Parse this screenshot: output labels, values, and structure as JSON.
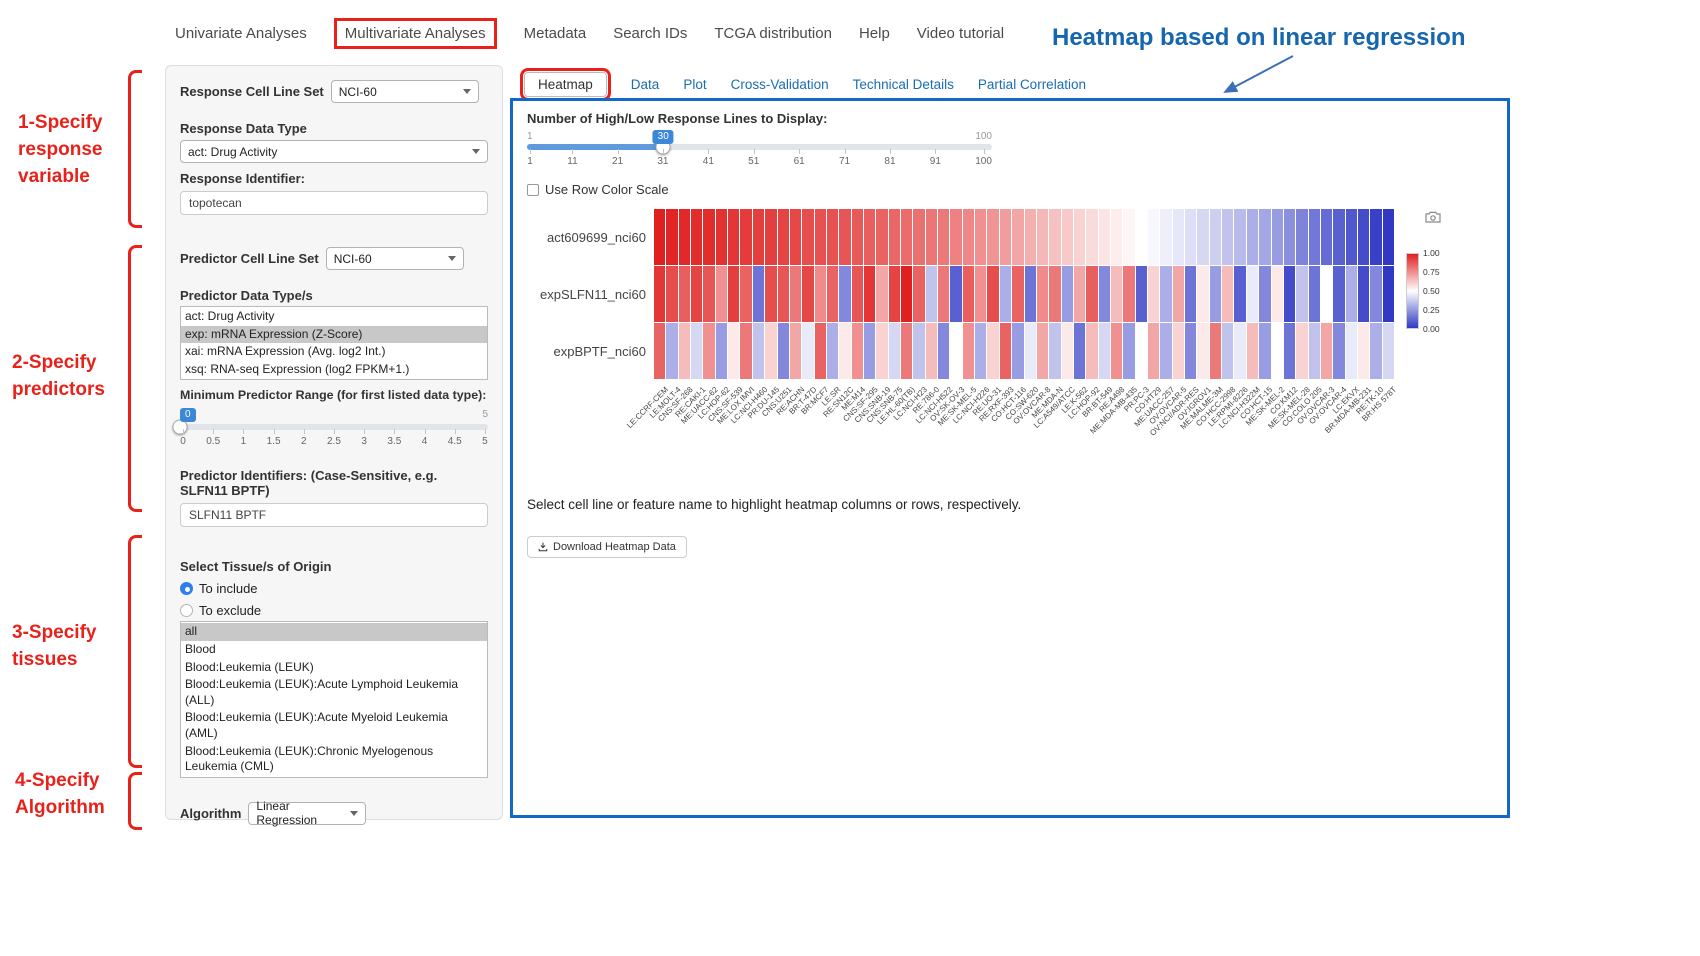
{
  "colors": {
    "annotation_red": "#e8221b",
    "panel_border_blue": "#1268c3",
    "title_blue": "#1566ad",
    "link_blue": "#1a6db3",
    "slider_blue": "#3d87d9",
    "heatmap_high": "#e02020",
    "heatmap_low": "#3038c4"
  },
  "nav": {
    "items": [
      "Univariate Analyses",
      "Multivariate Analyses",
      "Metadata",
      "Search IDs",
      "TCGA distribution",
      "Help",
      "Video tutorial"
    ],
    "active": "Multivariate Analyses"
  },
  "header": {
    "title": "Heatmap based on linear regression"
  },
  "annotations": {
    "steps": [
      {
        "label": "1-Specify\nresponse\nvariable"
      },
      {
        "label": "2-Specify\npredictors"
      },
      {
        "label": "3-Specify\ntissues"
      },
      {
        "label": "4-Specify\nAlgorithm"
      }
    ]
  },
  "sidebar": {
    "response_cell_line_set": {
      "label": "Response Cell Line Set",
      "value": "NCI-60"
    },
    "response_data_type": {
      "label": "Response Data Type",
      "value": "act: Drug Activity"
    },
    "response_identifier": {
      "label": "Response Identifier:",
      "value": "topotecan"
    },
    "predictor_cell_line_set": {
      "label": "Predictor Cell Line Set",
      "value": "NCI-60"
    },
    "predictor_data_types": {
      "label": "Predictor Data Type/s",
      "options": [
        "act: Drug Activity",
        "exp: mRNA Expression (Z-Score)",
        "xai: mRNA Expression (Avg. log2 Int.)",
        "xsq: RNA-seq Expression (log2 FPKM+1.)"
      ],
      "selected": "exp: mRNA Expression (Z-Score)"
    },
    "min_predictor_range": {
      "label": "Minimum Predictor Range (for first listed data type):",
      "value": "0",
      "min": "0",
      "max": "5",
      "ticks": [
        "0",
        "0.5",
        "1",
        "1.5",
        "2",
        "2.5",
        "3",
        "3.5",
        "4",
        "4.5",
        "5"
      ]
    },
    "predictor_identifiers": {
      "label": "Predictor Identifiers: (Case-Sensitive, e.g. SLFN11 BPTF)",
      "value": "SLFN11 BPTF"
    },
    "tissue": {
      "label": "Select Tissue/s of Origin",
      "include_option": "To include",
      "exclude_option": "To exclude",
      "selected_mode": "To include",
      "options": [
        "all",
        "Blood",
        "Blood:Leukemia (LEUK)",
        "Blood:Leukemia (LEUK):Acute Lymphoid Leukemia (ALL)",
        "Blood:Leukemia (LEUK):Acute Myeloid Leukemia (AML)",
        "Blood:Leukemia (LEUK):Chronic Myelogenous Leukemia (CML)"
      ],
      "selected": "all"
    },
    "algorithm": {
      "label": "Algorithm",
      "value": "Linear Regression"
    }
  },
  "main": {
    "tabs": [
      "Heatmap",
      "Data",
      "Plot",
      "Cross-Validation",
      "Technical Details",
      "Partial Correlation"
    ],
    "active_tab": "Heatmap",
    "slider": {
      "label": "Number of High/Low Response Lines to Display:",
      "value": "30",
      "min": "1",
      "max": "100",
      "ticks": [
        "1",
        "11",
        "21",
        "31",
        "41",
        "51",
        "61",
        "71",
        "81",
        "91",
        "100"
      ]
    },
    "row_scale_label": "Use Row Color Scale",
    "hint": "Select cell line or feature name to highlight heatmap columns or rows, respectively.",
    "download_label": "Download Heatmap Data"
  },
  "chart_data": {
    "type": "heatmap",
    "title": "",
    "rows": [
      "act609699_nci60",
      "expSLFN11_nci60",
      "expBPTF_nci60"
    ],
    "columns": [
      "LE:CCRF-CEM",
      "LE:MOLT-4",
      "CNS:SF-268",
      "RE:CAKI-1",
      "ME:UACC-62",
      "LC:HOP-62",
      "CNS:SF-539",
      "ME:LOX IMVI",
      "LC:NCI-H460",
      "PR:DU-145",
      "CNS:U251",
      "RE:ACHN",
      "BR:T-47D",
      "BR:MCF7",
      "LE:SR",
      "RE:SN12C",
      "ME:M14",
      "CNS:SF-295",
      "CNS:SNB-19",
      "CNS:SNB-75",
      "LE:HL-60(TB)",
      "LC:NCI-H23",
      "RE:786-0",
      "LC:NCI-H522",
      "OV:SK-OV-3",
      "ME:SK-MEL-5",
      "LC:NCI-H226",
      "RE:UO-31",
      "RE:RXF-393",
      "CO:HCT-116",
      "CO:SW-620",
      "OV:OVCAR-8",
      "ME:MDA-N",
      "LC:A549/ATCC",
      "LE:K-562",
      "LC:HOP-92",
      "BR:BT-549",
      "RE:A498",
      "ME:MDA-MB-435",
      "PR:PC-3",
      "CO:HT29",
      "ME:UACC-257",
      "OV:OVCAR-5",
      "OV:NCI/ADR-RES",
      "OV:IGROV1",
      "ME:MALME-3M",
      "CO:HCC-2998",
      "LE:RPMI-8226",
      "LC:NCI-H322M",
      "CO:HCT-15",
      "ME:SK-MEL-2",
      "CO:KM12",
      "ME:SK-MEL-28",
      "CO:COLO 205",
      "OV:OVCAR-3",
      "OV:OVCAR-4",
      "LC:EKVX",
      "BR:MDA-MB-231",
      "RE:TK-10",
      "BR:HS 578T"
    ],
    "values": [
      [
        1.0,
        0.99,
        0.98,
        0.97,
        0.97,
        0.96,
        0.95,
        0.94,
        0.93,
        0.93,
        0.92,
        0.91,
        0.9,
        0.89,
        0.89,
        0.88,
        0.87,
        0.86,
        0.85,
        0.84,
        0.83,
        0.82,
        0.81,
        0.8,
        0.78,
        0.77,
        0.75,
        0.74,
        0.72,
        0.7,
        0.68,
        0.66,
        0.64,
        0.62,
        0.6,
        0.58,
        0.56,
        0.54,
        0.52,
        0.5,
        0.48,
        0.46,
        0.44,
        0.42,
        0.4,
        0.38,
        0.35,
        0.33,
        0.3,
        0.28,
        0.25,
        0.22,
        0.19,
        0.16,
        0.13,
        0.1,
        0.08,
        0.05,
        0.02,
        0.0
      ],
      [
        0.95,
        0.9,
        0.86,
        0.92,
        0.88,
        0.75,
        0.93,
        0.85,
        0.15,
        0.9,
        0.88,
        0.8,
        0.91,
        0.76,
        0.85,
        0.2,
        0.88,
        0.95,
        0.7,
        0.92,
        1.0,
        0.85,
        0.35,
        0.8,
        0.1,
        0.86,
        0.75,
        0.9,
        0.3,
        0.85,
        0.15,
        0.76,
        0.8,
        0.25,
        0.7,
        0.86,
        0.2,
        0.65,
        0.8,
        0.1,
        0.6,
        0.3,
        0.7,
        0.15,
        0.55,
        0.25,
        0.65,
        0.1,
        0.45,
        0.2,
        0.55,
        0.05,
        0.35,
        0.15,
        0.5,
        0.1,
        0.3,
        0.05,
        0.2,
        0.0
      ],
      [
        0.85,
        0.3,
        0.65,
        0.4,
        0.75,
        0.25,
        0.55,
        0.8,
        0.35,
        0.6,
        0.2,
        0.7,
        0.45,
        0.85,
        0.3,
        0.55,
        0.75,
        0.25,
        0.6,
        0.4,
        0.8,
        0.35,
        0.65,
        0.2,
        0.5,
        0.75,
        0.3,
        0.6,
        0.85,
        0.25,
        0.45,
        0.7,
        0.35,
        0.55,
        0.15,
        0.65,
        0.4,
        0.75,
        0.25,
        0.5,
        0.7,
        0.3,
        0.6,
        0.2,
        0.55,
        0.8,
        0.35,
        0.45,
        0.65,
        0.25,
        0.5,
        0.15,
        0.6,
        0.35,
        0.7,
        0.2,
        0.45,
        0.55,
        0.3,
        0.4
      ]
    ],
    "colorscale": {
      "min": 0.0,
      "max": 1.0,
      "legend_ticks": [
        "1.00",
        "0.75",
        "0.50",
        "0.25",
        "0.00"
      ],
      "high_color": "#e02020",
      "mid_color": "#ffffff",
      "low_color": "#3038c4"
    }
  }
}
